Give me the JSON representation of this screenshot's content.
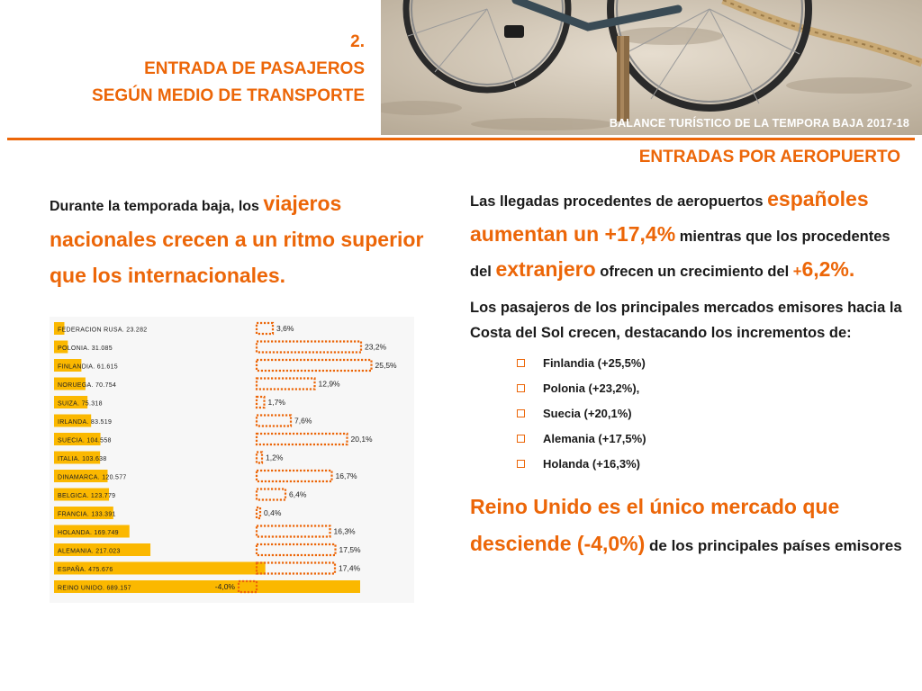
{
  "header": {
    "number": "2.",
    "title_line1": "ENTRADA DE PASAJEROS",
    "title_line2": "SEGÚN MEDIO DE TRANSPORTE",
    "photo_caption": "BALANCE TURÍSTICO DE LA TEMPORA BAJA 2017-18"
  },
  "section_heading": "ENTRADAS POR AEROPUERTO",
  "intro": {
    "part1": "Durante la temporada baja, los ",
    "highlight1": "viajeros",
    "highlight2": "nacionales crecen a un ritmo superior que los internacionales."
  },
  "right": {
    "p1_a": "Las llegadas procedentes de aeropuertos ",
    "p1_big1": "españoles aumentan un +17,4%",
    "p1_b": " mientras que los procedentes del ",
    "p1_big2": "extranjero",
    "p1_c": " ofrecen un crecimiento del ",
    "p1_small": "+",
    "p1_big3": "6,2%.",
    "p2": "Los pasajeros de los principales mercados emisores hacia la Costa del Sol crecen, destacando los incrementos de:",
    "bullets": [
      "Finlandia (+25,5%)",
      "Polonia (+23,2%),",
      "Suecia (+20,1%)",
      "Alemania (+17,5%)",
      "Holanda (+16,3%)"
    ],
    "p3_big": "Reino Unido es el único mercado que desciende (-4,0%)",
    "p3_small": " de los principales países emisores"
  },
  "colors": {
    "accent": "#ec6608",
    "bar": "#fbb800",
    "text": "#1a1a1a"
  },
  "chart_data": {
    "type": "bar",
    "orientation": "horizontal",
    "categories": [
      "FEDERACION RUSA. 23.282",
      "POLONIA. 31.085",
      "FINLANDIA. 61.615",
      "NORUEGA. 70.754",
      "SUIZA. 75.318",
      "IRLANDA. 83.519",
      "SUECIA. 104.558",
      "ITALIA. 103.638",
      "DINAMARCA. 120.577",
      "BELGICA. 123.779",
      "FRANCIA. 133.391",
      "HOLANDA. 169.749",
      "ALEMANIA. 217.023",
      "ESPAÑA. 475.676",
      "REINO UNIDO. 689.157"
    ],
    "series": [
      {
        "name": "",
        "values": [
          23282,
          31085,
          61615,
          70754,
          75318,
          83519,
          104558,
          103638,
          120577,
          123779,
          133391,
          169749,
          217023,
          475676,
          689157
        ]
      },
      {
        "name": "",
        "values": [
          3.6,
          23.2,
          25.5,
          12.9,
          1.7,
          7.6,
          20.1,
          1.2,
          16.7,
          6.4,
          0.4,
          16.3,
          17.5,
          17.4,
          -4.0
        ]
      }
    ],
    "growth_labels": [
      "3,6%",
      "23,2%",
      "25,5%",
      "12,9%",
      "1,7%",
      "7,6%",
      "20,1%",
      "1,2%",
      "16,7%",
      "6,4%",
      "0,4%",
      "16,3%",
      "17,5%",
      "17,4%",
      "-4,0%"
    ]
  }
}
